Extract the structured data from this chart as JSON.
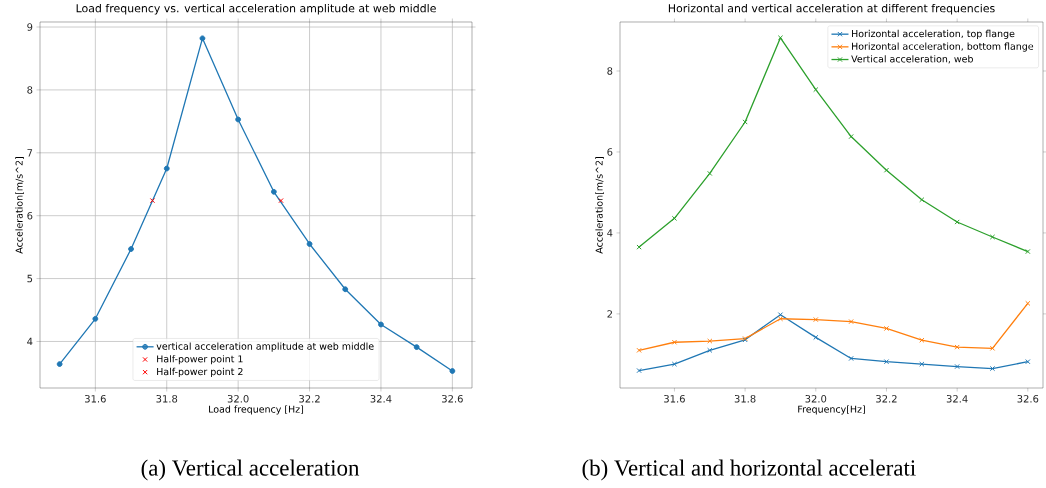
{
  "chart_data": [
    {
      "type": "line",
      "title": "Load frequency vs. vertical acceleration amplitude at web middle",
      "xlabel": "Load frequency [Hz]",
      "ylabel": "Acceleration[m/s^2]",
      "x": [
        31.5,
        31.6,
        31.7,
        31.8,
        31.9,
        32.0,
        32.1,
        32.2,
        32.3,
        32.4,
        32.5,
        32.6
      ],
      "series": [
        {
          "name": "vertical acceleration amplitude at web middle",
          "color": "#1f77b4",
          "values": [
            3.64,
            4.36,
            5.47,
            6.75,
            8.82,
            7.53,
            6.38,
            5.55,
            4.83,
            4.27,
            3.91,
            3.53
          ]
        },
        {
          "type": "scatter",
          "name": "Half-power point 1",
          "color": "#ff0000",
          "marker": "cross",
          "x": [
            31.76
          ],
          "values": [
            6.24
          ]
        },
        {
          "type": "scatter",
          "name": "Half-power point 2",
          "color": "#ff0000",
          "marker": "cross",
          "x": [
            32.12
          ],
          "values": [
            6.24
          ]
        }
      ],
      "xlim": [
        31.445,
        32.655
      ],
      "ylim": [
        3.26,
        9.08
      ],
      "xticks": [
        31.6,
        31.8,
        {
          "value": 32,
          "label": "32.0"
        },
        32.2,
        32.4,
        32.6
      ],
      "yticks": [
        4,
        5,
        6,
        7,
        8,
        9
      ],
      "grid": true,
      "legend": "bottom",
      "marker": "circle",
      "line_style": "solid",
      "annotations": [
        "(a) Vertical acceleration"
      ]
    },
    {
      "type": "line",
      "title": "Horizontal and vertical acceleration at different frequencies",
      "xlabel": "Frequency[Hz]",
      "ylabel": "Acceleration[m/s^2]",
      "x": [
        31.5,
        31.6,
        31.7,
        31.8,
        31.9,
        32.0,
        32.1,
        32.2,
        32.3,
        32.4,
        32.5,
        32.6
      ],
      "series": [
        {
          "name": "Horizontal acceleration, top flange",
          "color": "#1f77b4",
          "values": [
            0.6,
            0.76,
            1.1,
            1.36,
            1.98,
            1.42,
            0.9,
            0.82,
            0.76,
            0.7,
            0.65,
            0.82
          ]
        },
        {
          "name": "Horizontal acceleration, bottom flange",
          "color": "#ff7f0e",
          "values": [
            1.1,
            1.3,
            1.33,
            1.39,
            1.88,
            1.86,
            1.81,
            1.64,
            1.35,
            1.18,
            1.15,
            2.26
          ]
        },
        {
          "name": "Vertical acceleration, web",
          "color": "#2ca02c",
          "values": [
            3.65,
            4.36,
            5.47,
            6.74,
            8.82,
            7.54,
            6.38,
            5.55,
            4.82,
            4.27,
            3.9,
            3.54
          ]
        }
      ],
      "xlim": [
        31.446,
        32.643
      ],
      "ylim": [
        0.17,
        9.21
      ],
      "xticks": [
        31.6,
        31.8,
        {
          "value": 32,
          "label": "32.0"
        },
        32.2,
        32.4,
        32.6
      ],
      "yticks": [
        2,
        4,
        6,
        8
      ],
      "legend": "top right",
      "marker": "cross",
      "line_style": "solid",
      "annotations": [
        "(b) Vertical and horizontal accelerati"
      ]
    }
  ]
}
